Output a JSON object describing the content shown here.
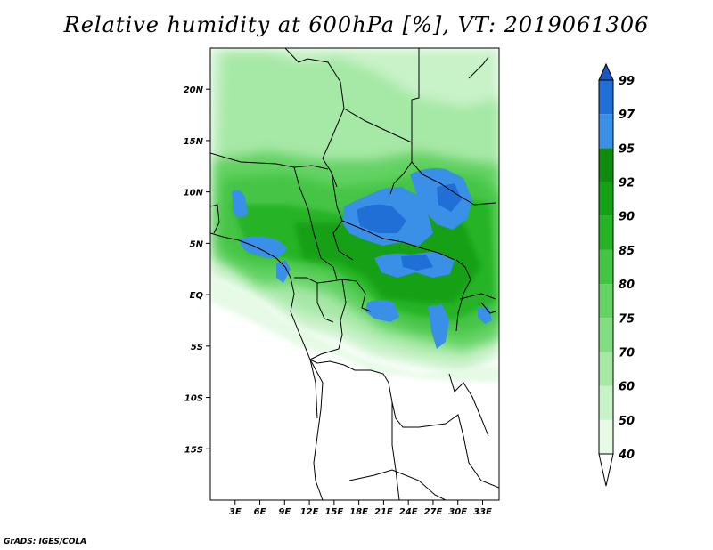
{
  "title": "Relative humidity at 600hPa [%], VT: 2019061306",
  "credit": "GrADS: IGES/COLA",
  "map": {
    "lon_range": [
      0,
      35
    ],
    "lat_range": [
      -20,
      24
    ],
    "lat_ticks": [
      "20N",
      "15N",
      "10N",
      "5N",
      "EQ",
      "5S",
      "10S",
      "15S"
    ],
    "lon_ticks": [
      "3E",
      "6E",
      "9E",
      "12E",
      "15E",
      "18E",
      "21E",
      "24E",
      "27E",
      "30E",
      "33E"
    ]
  },
  "colorbar": {
    "labels": [
      "40",
      "50",
      "60",
      "70",
      "75",
      "80",
      "85",
      "90",
      "92",
      "95",
      "97",
      "99"
    ],
    "colors": [
      "#ffffff",
      "#e6fae6",
      "#c8f2c8",
      "#a6e8a6",
      "#82dc82",
      "#64d264",
      "#44c444",
      "#26b426",
      "#14a014",
      "#0f8c0f",
      "#3a8fe6",
      "#1f6fd6",
      "#1a55c0"
    ]
  }
}
